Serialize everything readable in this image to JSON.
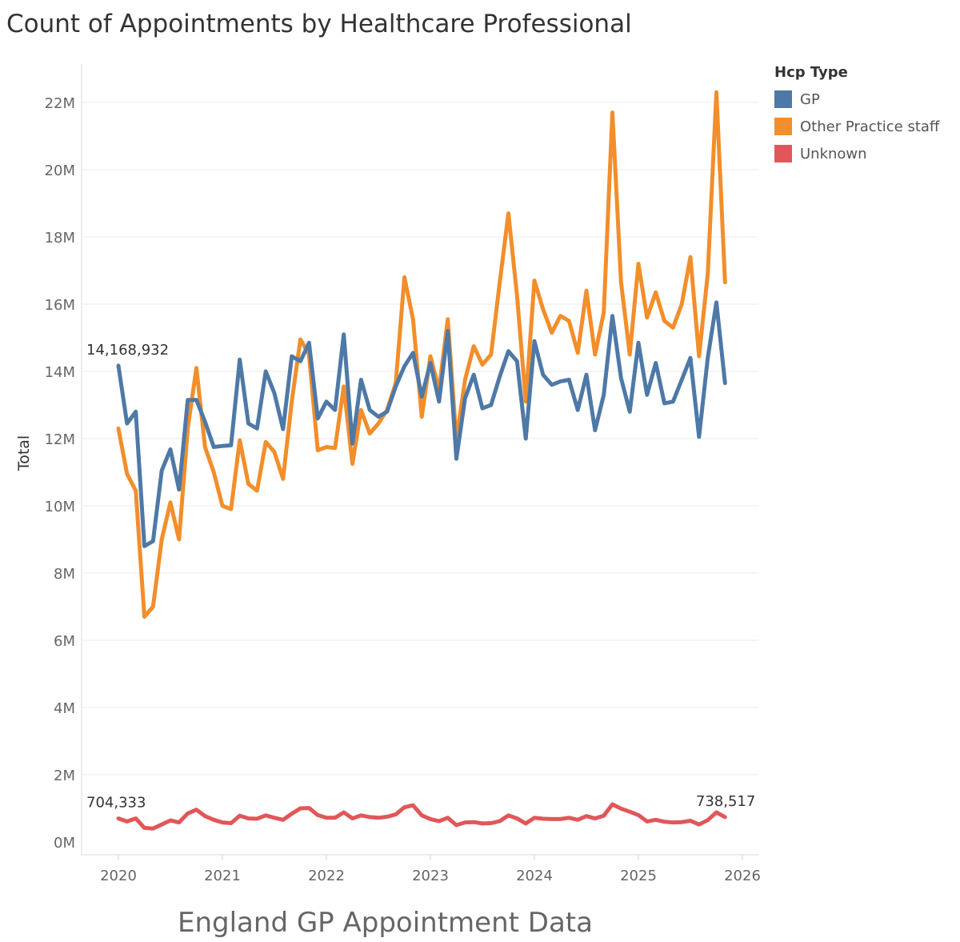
{
  "title": "Count of Appointments by Healthcare Professional",
  "footer": "England GP Appointment Data",
  "legend": {
    "title": "Hcp Type",
    "items": [
      {
        "label": "GP",
        "color": "#4e79a7"
      },
      {
        "label": "Other Practice staff",
        "color": "#f28e2b"
      },
      {
        "label": "Unknown",
        "color": "#e15759"
      }
    ]
  },
  "chart_data": {
    "type": "line",
    "ylabel": "Total",
    "ylim": [
      0,
      23.2
    ],
    "y_ticks": [
      0,
      2,
      4,
      6,
      8,
      10,
      12,
      14,
      16,
      18,
      20,
      22
    ],
    "y_tick_labels": [
      "0M",
      "2M",
      "4M",
      "6M",
      "8M",
      "10M",
      "12M",
      "14M",
      "16M",
      "18M",
      "20M",
      "22M"
    ],
    "x_start": "2020-01",
    "x_ticks": [
      "2020",
      "2021",
      "2022",
      "2023",
      "2024",
      "2025",
      "2026"
    ],
    "grid": true,
    "legend_position": "top-right",
    "series": [
      {
        "name": "GP",
        "color": "#4e79a7",
        "values": [
          14.17,
          12.45,
          12.8,
          8.8,
          8.95,
          11.05,
          11.68,
          10.48,
          13.15,
          13.15,
          12.5,
          11.75,
          11.78,
          11.8,
          14.35,
          12.45,
          12.3,
          14.0,
          13.35,
          12.28,
          14.45,
          14.3,
          14.85,
          12.6,
          13.1,
          12.85,
          15.1,
          11.85,
          13.75,
          12.85,
          12.65,
          12.8,
          13.55,
          14.15,
          14.55,
          13.25,
          14.25,
          13.1,
          15.2,
          11.4,
          13.2,
          13.9,
          12.9,
          13.0,
          13.85,
          14.6,
          14.3,
          12.0,
          14.9,
          13.9,
          13.6,
          13.7,
          13.75,
          12.85,
          13.9,
          12.25,
          13.3,
          15.65,
          13.8,
          12.8,
          14.85,
          13.3,
          14.25,
          13.05,
          13.1,
          13.75,
          14.4,
          12.05,
          14.4,
          16.05,
          13.65
        ]
      },
      {
        "name": "Other Practice staff",
        "color": "#f28e2b",
        "values": [
          12.3,
          10.95,
          10.45,
          6.7,
          7.0,
          9.0,
          10.1,
          9.0,
          12.3,
          14.1,
          11.75,
          11.0,
          10.0,
          9.9,
          11.95,
          10.65,
          10.45,
          11.9,
          11.6,
          10.8,
          13.1,
          14.95,
          14.5,
          11.65,
          11.75,
          11.72,
          13.55,
          11.25,
          12.85,
          12.15,
          12.45,
          12.85,
          13.65,
          16.8,
          15.55,
          12.65,
          14.45,
          13.45,
          15.55,
          11.95,
          13.75,
          14.75,
          14.2,
          14.5,
          16.65,
          18.7,
          16.25,
          13.1,
          16.7,
          15.85,
          15.15,
          15.65,
          15.5,
          14.55,
          16.4,
          14.5,
          15.75,
          21.7,
          16.65,
          14.5,
          17.2,
          15.6,
          16.35,
          15.5,
          15.3,
          16.0,
          17.4,
          14.45,
          16.9,
          22.3,
          16.65
        ]
      },
      {
        "name": "Unknown",
        "color": "#e15759",
        "values": [
          0.7,
          0.61,
          0.7,
          0.42,
          0.4,
          0.52,
          0.64,
          0.58,
          0.85,
          0.96,
          0.77,
          0.66,
          0.58,
          0.56,
          0.78,
          0.7,
          0.69,
          0.79,
          0.72,
          0.66,
          0.84,
          1.0,
          1.01,
          0.8,
          0.72,
          0.72,
          0.88,
          0.7,
          0.79,
          0.74,
          0.72,
          0.75,
          0.82,
          1.03,
          1.09,
          0.79,
          0.68,
          0.62,
          0.72,
          0.5,
          0.58,
          0.59,
          0.55,
          0.56,
          0.62,
          0.79,
          0.7,
          0.55,
          0.72,
          0.69,
          0.68,
          0.68,
          0.72,
          0.66,
          0.77,
          0.7,
          0.78,
          1.12,
          0.99,
          0.9,
          0.8,
          0.61,
          0.66,
          0.6,
          0.58,
          0.59,
          0.63,
          0.52,
          0.65,
          0.88,
          0.74
        ]
      }
    ],
    "annotations": [
      {
        "series": "GP",
        "index": 0,
        "text": "14,168,932"
      },
      {
        "series": "Unknown",
        "index": 0,
        "text": "704,333"
      },
      {
        "series": "Unknown",
        "index": 70,
        "text": "738,517"
      }
    ]
  }
}
